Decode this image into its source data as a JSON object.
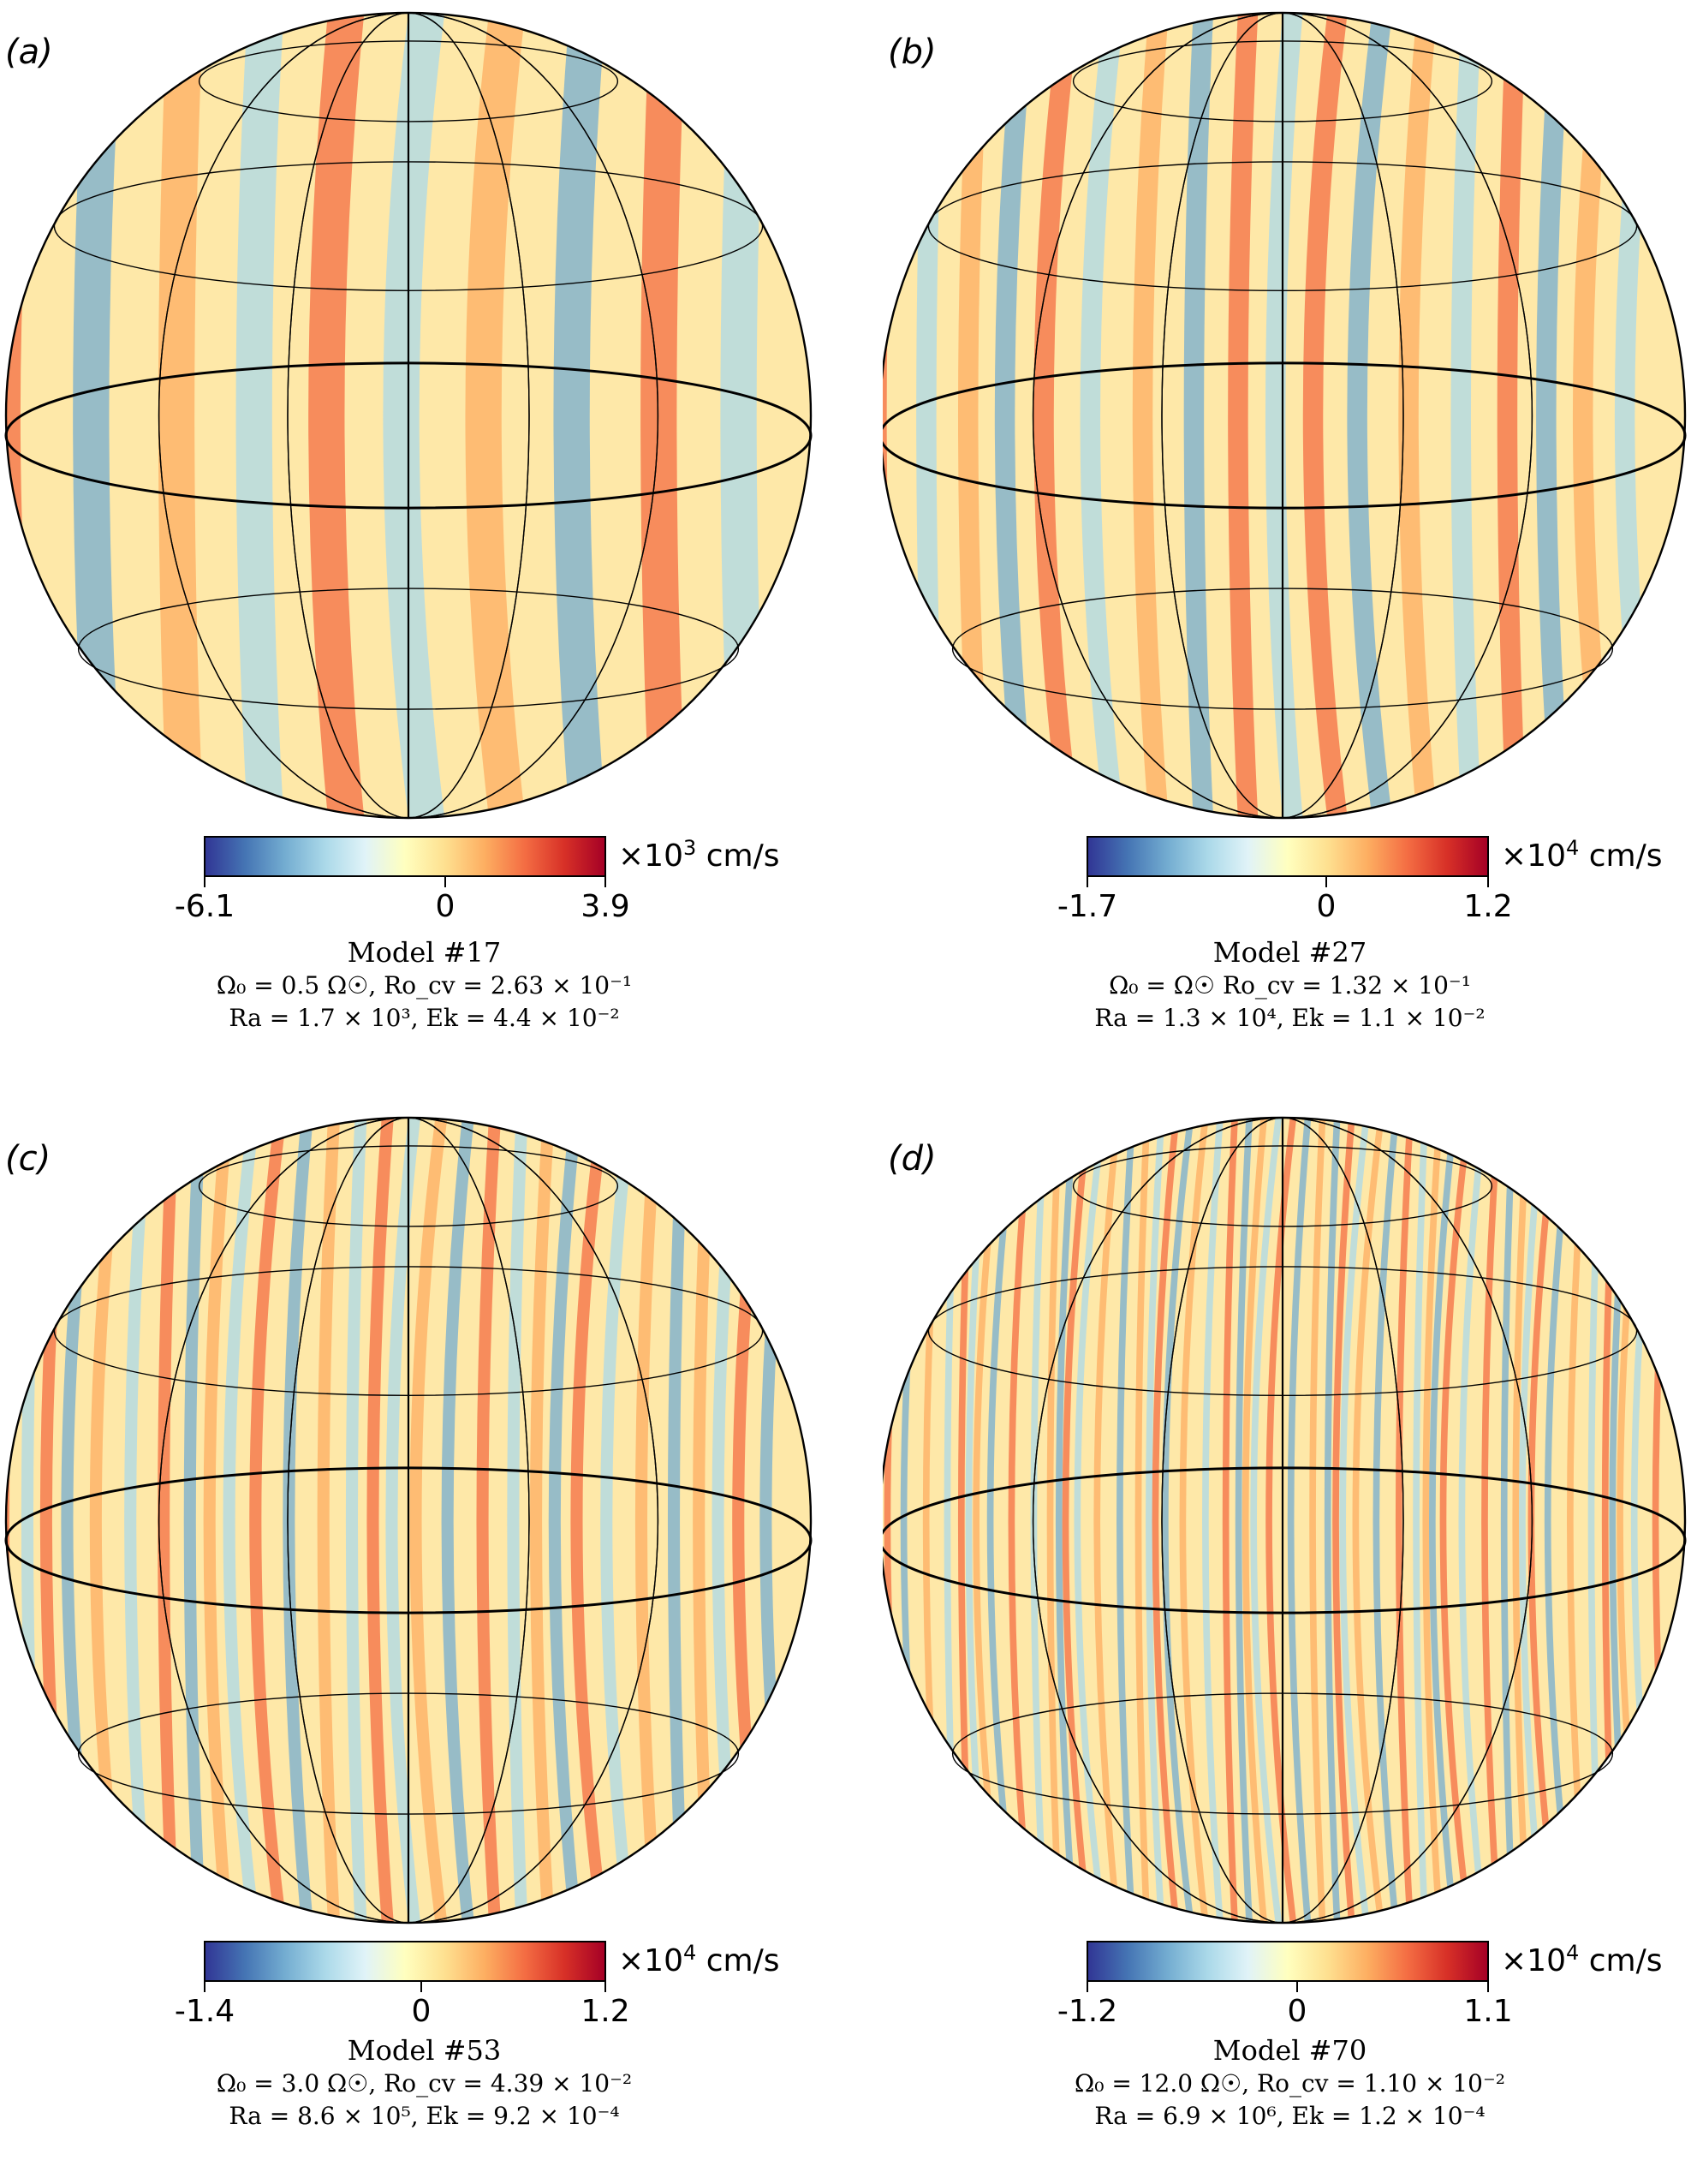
{
  "panels": [
    {
      "label": "(a)",
      "colorbar": {
        "min_label": "-6.1",
        "zero_label": "0",
        "max_label": "3.9",
        "min": -6.1,
        "max": 3.9,
        "unit_prefix": "×10",
        "unit_exp": "3",
        "unit_suffix": " cm/s"
      },
      "caption": {
        "model": "Model #17",
        "line1": "Ω₀ = 0.5 Ω☉,    Ro_cv = 2.63 × 10⁻¹",
        "line2": "Ra = 1.7 × 10³,    Ek = 4.4 × 10⁻²"
      }
    },
    {
      "label": "(b)",
      "colorbar": {
        "min_label": "-1.7",
        "zero_label": "0",
        "max_label": "1.2",
        "min": -1.7,
        "max": 1.2,
        "unit_prefix": "×10",
        "unit_exp": "4",
        "unit_suffix": " cm/s"
      },
      "caption": {
        "model": "Model #27",
        "line1": "Ω₀ = Ω☉    Ro_cv = 1.32 × 10⁻¹",
        "line2": "Ra = 1.3 × 10⁴,    Ek = 1.1 × 10⁻²"
      }
    },
    {
      "label": "(c)",
      "colorbar": {
        "min_label": "-1.4",
        "zero_label": "0",
        "max_label": "1.2",
        "min": -1.4,
        "max": 1.2,
        "unit_prefix": "×10",
        "unit_exp": "4",
        "unit_suffix": " cm/s"
      },
      "caption": {
        "model": "Model #53",
        "line1": "Ω₀ = 3.0 Ω☉,    Ro_cv = 4.39 × 10⁻²",
        "line2": "Ra = 8.6 × 10⁵,    Ek = 9.2 × 10⁻⁴"
      }
    },
    {
      "label": "(d)",
      "colorbar": {
        "min_label": "-1.2",
        "zero_label": "0",
        "max_label": "1.1",
        "min": -1.2,
        "max": 1.1,
        "unit_prefix": "×10",
        "unit_exp": "4",
        "unit_suffix": " cm/s"
      },
      "caption": {
        "model": "Model #70",
        "line1": "Ω₀ = 12.0 Ω☉,    Ro_cv = 1.10 × 10⁻²",
        "line2": "Ra = 6.9 × 10⁶,    Ek = 1.2 × 10⁻⁴"
      }
    }
  ],
  "colormap": [
    "#313695",
    "#4575b4",
    "#74add1",
    "#abd9e9",
    "#e0f3f8",
    "#ffffbf",
    "#fee090",
    "#fdae61",
    "#f46d43",
    "#d73027",
    "#a50026"
  ]
}
